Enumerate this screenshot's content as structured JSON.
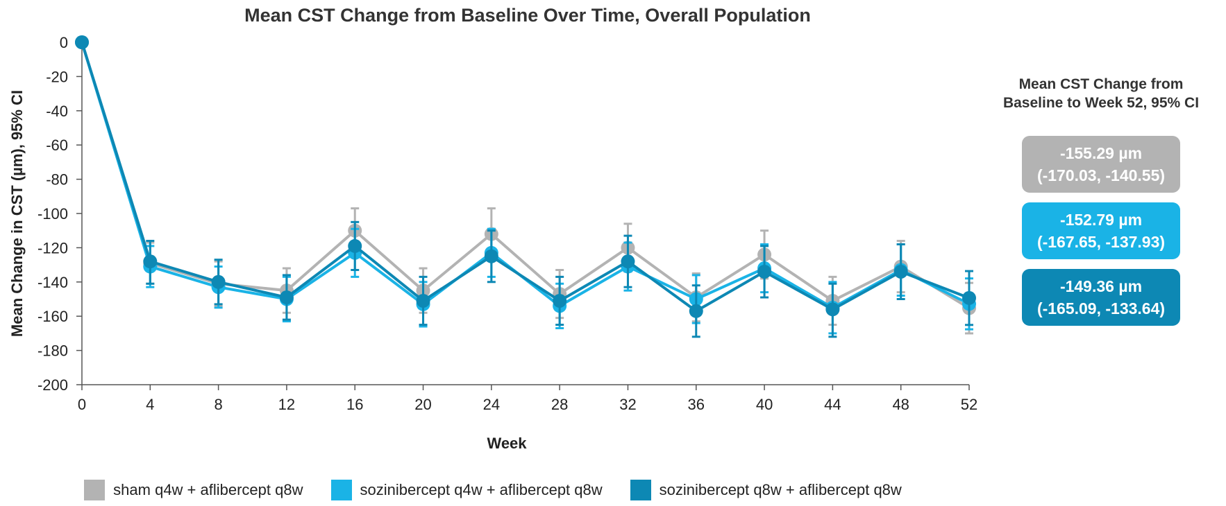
{
  "chart_data": {
    "type": "line",
    "title": "Mean CST Change from Baseline Over Time, Overall Population",
    "xlabel": "Week",
    "ylabel": "Mean Change in CST (µm), 95% CI",
    "xlim": [
      0,
      52
    ],
    "ylim": [
      -200,
      0
    ],
    "x": [
      0,
      4,
      8,
      12,
      16,
      20,
      24,
      28,
      32,
      36,
      40,
      44,
      48,
      52
    ],
    "xticks": [
      "0",
      "4",
      "8",
      "12",
      "16",
      "20",
      "24",
      "28",
      "32",
      "36",
      "40",
      "44",
      "48",
      "52"
    ],
    "yticks": [
      "0",
      "-20",
      "-40",
      "-60",
      "-80",
      "-100",
      "-120",
      "-140",
      "-160",
      "-180",
      "-200"
    ],
    "grid": false,
    "legend_position": "bottom",
    "series": [
      {
        "name": "sham q4w + aflibercept q8w",
        "color": "#b3b3b3",
        "values": [
          0,
          -129,
          -141,
          -145,
          -110,
          -145,
          -112,
          -147,
          -120,
          -149,
          -124,
          -151,
          -131,
          -155.29
        ],
        "ci_lower": [
          0,
          -141,
          -154,
          -158,
          -123,
          -158,
          -127,
          -161,
          -134,
          -163,
          -138,
          -165,
          -146,
          -170.03
        ],
        "ci_upper": [
          0,
          -117,
          -128,
          -132,
          -97,
          -132,
          -97,
          -133,
          -106,
          -135,
          -110,
          -137,
          -116,
          -140.55
        ]
      },
      {
        "name": "sozinibercept q4w + aflibercept q8w",
        "color": "#1ab3e6",
        "values": [
          0,
          -131,
          -143,
          -150,
          -123,
          -153,
          -123,
          -154,
          -131,
          -150,
          -132,
          -155,
          -133,
          -152.79
        ],
        "ci_lower": [
          0,
          -143,
          -155,
          -163,
          -137,
          -166,
          -137,
          -167,
          -145,
          -164,
          -146,
          -170,
          -148,
          -167.65
        ],
        "ci_upper": [
          0,
          -119,
          -131,
          -137,
          -109,
          -140,
          -109,
          -141,
          -117,
          -136,
          -118,
          -140,
          -118,
          -137.93
        ]
      },
      {
        "name": "sozinibercept q8w + aflibercept q8w",
        "color": "#0d88b4",
        "values": [
          0,
          -128,
          -140,
          -149,
          -119,
          -151,
          -125,
          -151,
          -128,
          -157,
          -134,
          -156,
          -134,
          -149.36
        ],
        "ci_lower": [
          0,
          -141,
          -153,
          -162,
          -133,
          -165,
          -140,
          -165,
          -143,
          -172,
          -149,
          -172,
          -150,
          -165.09
        ],
        "ci_upper": [
          0,
          -116,
          -127,
          -136,
          -105,
          -137,
          -110,
          -137,
          -113,
          -142,
          -119,
          -141,
          -118,
          -133.64
        ]
      }
    ]
  },
  "summary": {
    "title_line1": "Mean CST Change from",
    "title_line2": "Baseline to Week 52, 95% CI",
    "boxes": [
      {
        "value": "-155.29 µm",
        "ci": "(-170.03, -140.55)",
        "color": "#b3b3b3"
      },
      {
        "value": "-152.79 µm",
        "ci": "(-167.65, -137.93)",
        "color": "#1ab3e6"
      },
      {
        "value": "-149.36 µm",
        "ci": "(-165.09, -133.64)",
        "color": "#0d88b4"
      }
    ]
  }
}
